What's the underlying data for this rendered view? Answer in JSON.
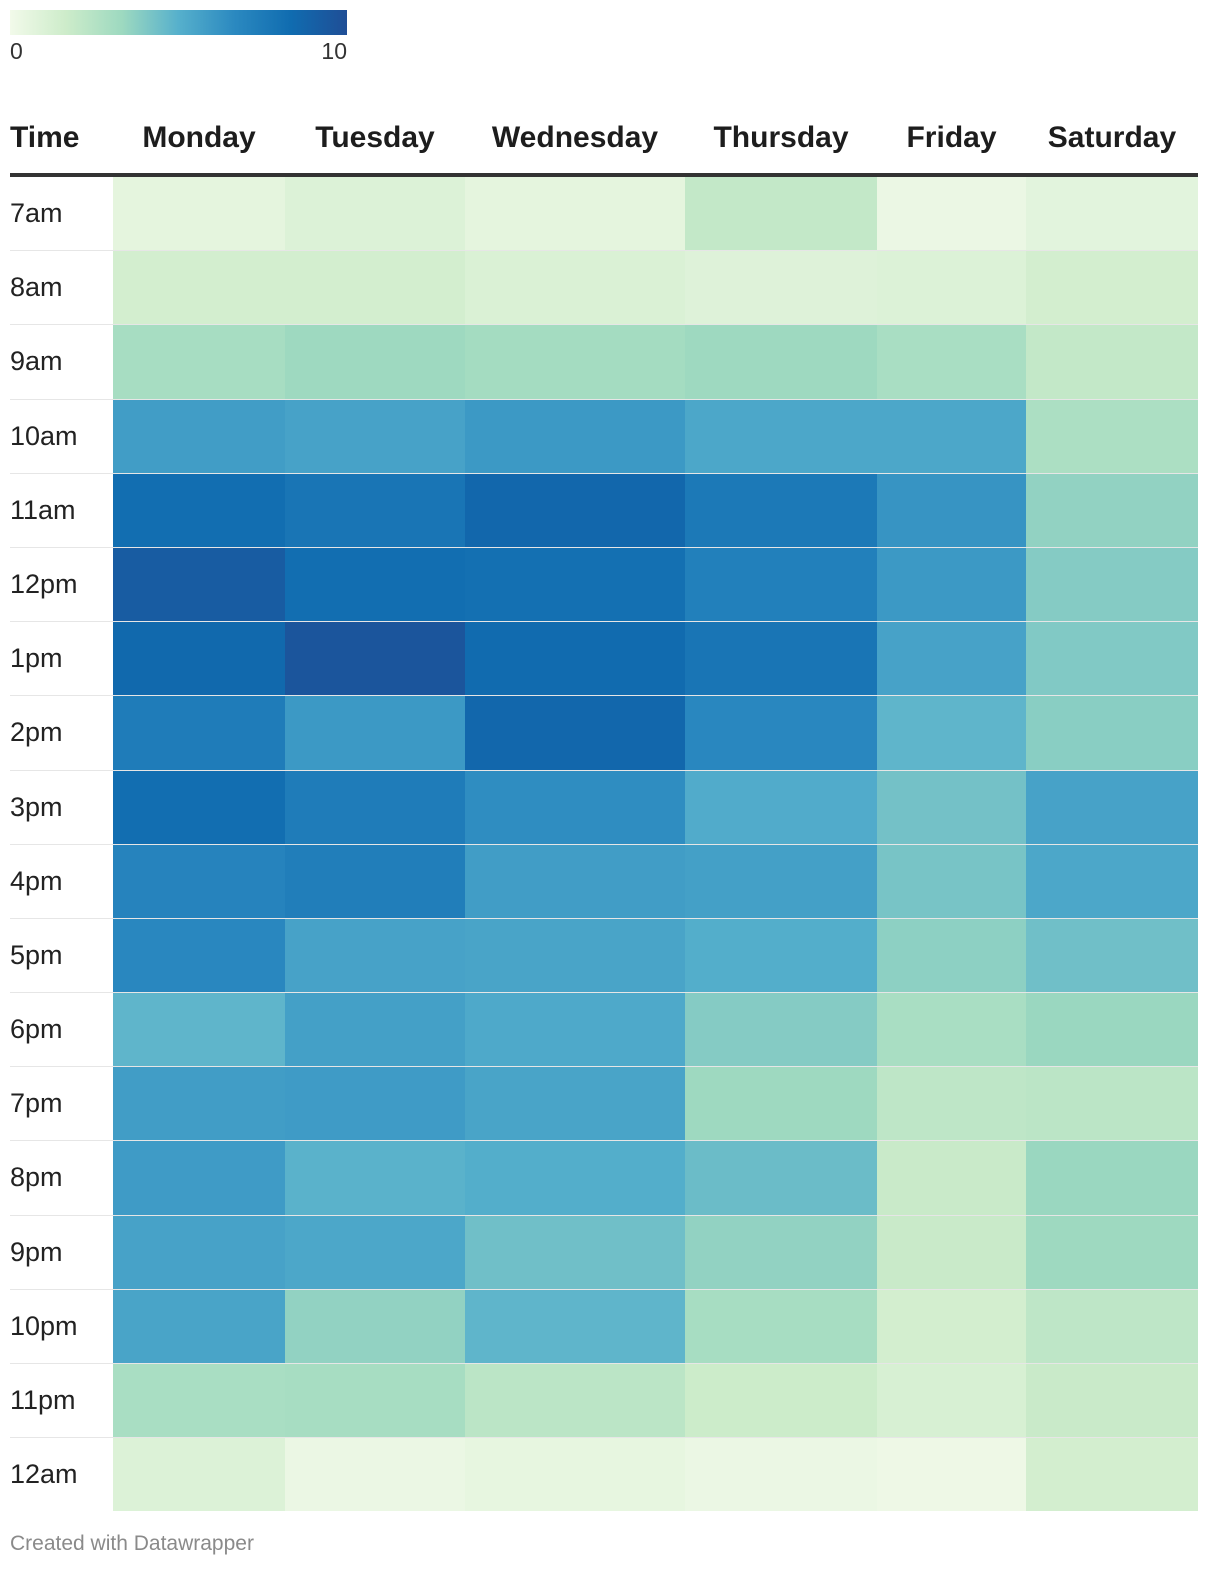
{
  "legend": {
    "min_label": "0",
    "max_label": "10",
    "colors": [
      "#f2faea",
      "#cdecca",
      "#9dd9c0",
      "#56b0cc",
      "#2b89c0",
      "#106cb0",
      "#1f4e96"
    ]
  },
  "footer": {
    "credit": "Created with Datawrapper"
  },
  "chart_data": {
    "type": "heatmap",
    "value_range": [
      0,
      10
    ],
    "row_header": "Time",
    "columns": [
      "Monday",
      "Tuesday",
      "Wednesday",
      "Thursday",
      "Friday",
      "Saturday"
    ],
    "rows": [
      "7am",
      "8am",
      "9am",
      "10am",
      "11am",
      "12pm",
      "1pm",
      "2pm",
      "3pm",
      "4pm",
      "5pm",
      "6pm",
      "7pm",
      "8pm",
      "9pm",
      "10pm",
      "11pm",
      "12am"
    ],
    "values": [
      [
        0.6,
        1.0,
        0.6,
        2.0,
        0.3,
        0.7
      ],
      [
        1.4,
        1.4,
        1.1,
        0.9,
        1.0,
        1.4
      ],
      [
        3.0,
        3.3,
        3.1,
        3.3,
        2.9,
        2.0
      ],
      [
        5.8,
        5.6,
        6.0,
        5.4,
        5.4,
        2.8
      ],
      [
        8.2,
        7.8,
        8.6,
        7.6,
        6.2,
        3.6
      ],
      [
        9.2,
        8.2,
        8.1,
        7.2,
        6.0,
        3.9
      ],
      [
        8.5,
        9.6,
        8.4,
        7.8,
        5.6,
        4.0
      ],
      [
        7.4,
        6.0,
        8.6,
        6.8,
        4.8,
        3.8
      ],
      [
        8.2,
        7.4,
        6.5,
        5.2,
        4.3,
        5.6
      ],
      [
        7.0,
        7.3,
        5.8,
        5.7,
        4.2,
        5.4
      ],
      [
        6.8,
        5.6,
        5.5,
        5.1,
        3.7,
        4.4
      ],
      [
        4.8,
        5.7,
        5.3,
        3.9,
        2.9,
        3.4
      ],
      [
        5.8,
        5.9,
        5.5,
        3.3,
        2.2,
        2.3
      ],
      [
        5.9,
        4.9,
        5.1,
        4.5,
        1.8,
        3.4
      ],
      [
        5.6,
        5.4,
        4.4,
        3.6,
        1.8,
        3.3
      ],
      [
        5.5,
        3.6,
        4.8,
        3.0,
        1.4,
        2.2
      ],
      [
        2.9,
        3.0,
        2.3,
        1.7,
        1.2,
        1.8
      ],
      [
        1.0,
        0.3,
        0.5,
        0.3,
        0.2,
        1.4
      ]
    ]
  }
}
